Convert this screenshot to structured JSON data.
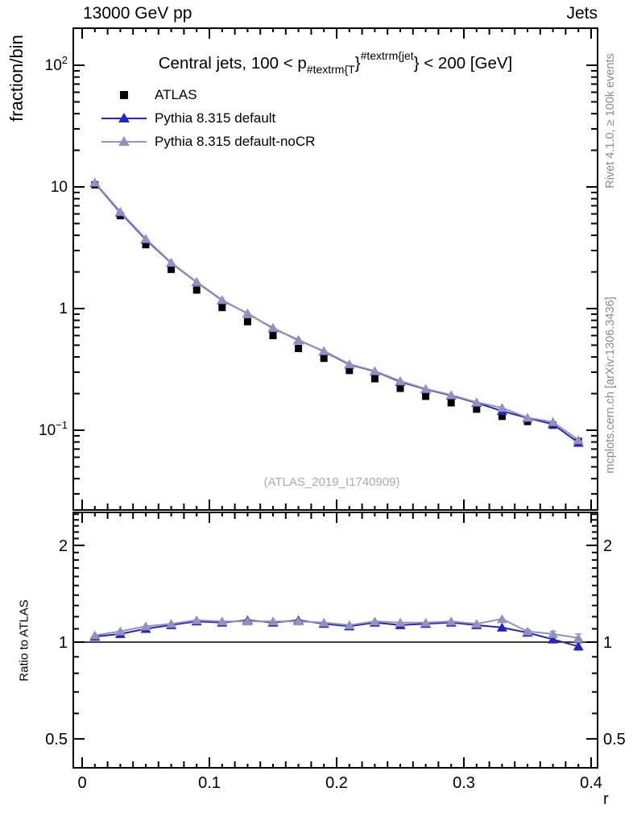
{
  "header": {
    "left": "13000 GeV pp",
    "right": "Jets"
  },
  "side_texts": {
    "rivet": "Rivet 4.1.0, ≥ 100k events",
    "mcplots": "mcplots.cern.ch [arXiv:1306.3436]"
  },
  "watermark": "(ATLAS_2019_I1740909)",
  "main_panel": {
    "ylabel": "fraction/bin",
    "title": {
      "prefix": "Central jets, 100 < p",
      "sub": "#textrm{T",
      "mid": "}",
      "sup": "#textrm{jet",
      "suffix": "} < 200 [GeV]"
    },
    "ytick_labels": [
      {
        "base": "10",
        "exp": "2",
        "v": 100
      },
      {
        "base": "10",
        "exp": "",
        "v": 10
      },
      {
        "base": "1",
        "exp": "",
        "v": 1
      },
      {
        "base": "10",
        "exp": "−1",
        "v": 0.1
      }
    ]
  },
  "ratio_panel": {
    "ylabel": "Ratio to ATLAS",
    "ytick_labels": [
      {
        "base": "2",
        "v": 2
      },
      {
        "base": "1",
        "v": 1
      },
      {
        "base": "0.5",
        "v": 0.5
      }
    ]
  },
  "xaxis": {
    "label": "r",
    "tick_labels": [
      "0",
      "0.1",
      "0.2",
      "0.3",
      "0.4"
    ],
    "tick_values": [
      0,
      0.1,
      0.2,
      0.3,
      0.4
    ]
  },
  "legend": {
    "items": [
      {
        "label": "ATLAS",
        "marker": "square",
        "color": "#000000",
        "line": false
      },
      {
        "label": "Pythia 8.315 default",
        "marker": "triangle",
        "color": "#2323c8",
        "line": true
      },
      {
        "label": "Pythia 8.315 default-noCR",
        "marker": "triangle",
        "color": "#9193be",
        "line": true
      }
    ]
  },
  "colors": {
    "black": "#000000",
    "pythia_default": "#2323c8",
    "pythia_nocr": "#9193be",
    "side_caption_gray": "#8a8a8a",
    "watermark_gray": "#aaaaaa"
  },
  "chart_data": [
    {
      "type": "scatter",
      "name": "main",
      "title": "Central jets, 100 < pT{jet} < 200 [GeV]",
      "xlabel": "r",
      "ylabel": "fraction/bin",
      "xscale": "linear",
      "yscale": "log",
      "xlim": [
        -0.007,
        0.405
      ],
      "ylim": [
        0.0224,
        200
      ],
      "x": [
        0.01,
        0.03,
        0.05,
        0.07,
        0.09,
        0.11,
        0.13,
        0.15,
        0.17,
        0.19,
        0.21,
        0.23,
        0.25,
        0.27,
        0.29,
        0.31,
        0.33,
        0.35,
        0.37,
        0.39
      ],
      "series": [
        {
          "name": "ATLAS",
          "marker": "square",
          "color": "#000000",
          "line": false,
          "values": [
            10.4,
            5.8,
            3.35,
            2.1,
            1.42,
            1.02,
            0.78,
            0.6,
            0.47,
            0.39,
            0.31,
            0.265,
            0.221,
            0.19,
            0.168,
            0.149,
            0.13,
            0.118,
            0.11,
            0.081
          ]
        },
        {
          "name": "Pythia 8.315 default",
          "marker": "triangle",
          "color": "#2323c8",
          "line": true,
          "values": [
            10.8,
            6.15,
            3.69,
            2.37,
            1.65,
            1.17,
            0.91,
            0.69,
            0.55,
            0.445,
            0.347,
            0.305,
            0.25,
            0.217,
            0.193,
            0.168,
            0.144,
            0.126,
            0.112,
            0.079
          ]
        },
        {
          "name": "Pythia 8.315 default-noCR",
          "marker": "triangle",
          "color": "#9193be",
          "line": true,
          "values": [
            10.9,
            6.26,
            3.75,
            2.39,
            1.66,
            1.18,
            0.905,
            0.696,
            0.545,
            0.449,
            0.35,
            0.307,
            0.254,
            0.219,
            0.195,
            0.17,
            0.153,
            0.127,
            0.117,
            0.083
          ]
        }
      ]
    },
    {
      "type": "line",
      "name": "ratio",
      "ylabel": "Ratio to ATLAS",
      "yscale": "log",
      "ylim": [
        0.406,
        2.53
      ],
      "reference_line": 1,
      "x": [
        0.01,
        0.03,
        0.05,
        0.07,
        0.09,
        0.11,
        0.13,
        0.15,
        0.17,
        0.19,
        0.21,
        0.23,
        0.25,
        0.27,
        0.29,
        0.31,
        0.33,
        0.35,
        0.37,
        0.39
      ],
      "series": [
        {
          "name": "Pythia 8.315 default",
          "marker": "triangle",
          "color": "#2323c8",
          "values": [
            1.04,
            1.06,
            1.1,
            1.13,
            1.16,
            1.15,
            1.17,
            1.15,
            1.17,
            1.14,
            1.12,
            1.15,
            1.13,
            1.14,
            1.15,
            1.13,
            1.11,
            1.07,
            1.02,
            0.97
          ],
          "yerr": [
            0,
            0,
            0,
            0,
            0,
            0,
            0,
            0,
            0,
            0,
            0,
            0,
            0,
            0,
            0,
            0,
            0,
            0.012,
            0.018,
            0.025
          ]
        },
        {
          "name": "Pythia 8.315 default-noCR",
          "marker": "triangle",
          "color": "#9193be",
          "values": [
            1.05,
            1.08,
            1.12,
            1.14,
            1.17,
            1.16,
            1.16,
            1.16,
            1.16,
            1.15,
            1.13,
            1.16,
            1.15,
            1.15,
            1.16,
            1.14,
            1.18,
            1.08,
            1.06,
            1.03
          ],
          "yerr": [
            0,
            0,
            0,
            0,
            0,
            0,
            0,
            0,
            0,
            0,
            0,
            0,
            0,
            0,
            0,
            0,
            0,
            0.012,
            0.02,
            0.03
          ]
        }
      ]
    }
  ]
}
